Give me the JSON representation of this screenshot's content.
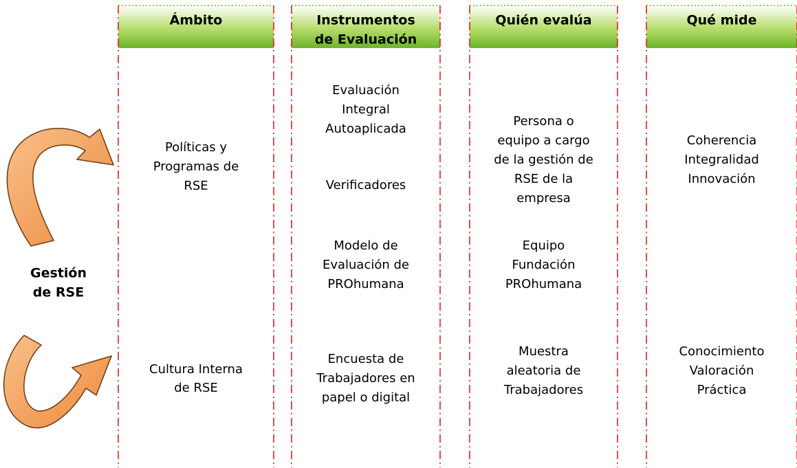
{
  "side_label": [
    "Gestión",
    "de RSE"
  ],
  "columns": [
    {
      "header": [
        "Ámbito"
      ],
      "cells": [
        [
          "Políticas y",
          "Programas de",
          "RSE"
        ],
        [
          "Cultura Interna",
          "de RSE"
        ]
      ]
    },
    {
      "header": [
        "Instrumentos",
        "de Evaluación"
      ],
      "cells": [
        [
          "Evaluación",
          "Integral",
          "Autoaplicada"
        ],
        [
          "Verificadores"
        ],
        [
          "Modelo  de",
          "Evaluación de",
          "PROhumana"
        ],
        [
          "Encuesta de",
          "Trabajadores en",
          "papel o digital"
        ]
      ]
    },
    {
      "header": [
        "Quién evalúa"
      ],
      "cells": [
        [
          "Persona o",
          "equipo a cargo",
          "de la gestión de",
          "RSE de la",
          "empresa"
        ],
        [
          "Equipo",
          "Fundación",
          "PROhumana"
        ],
        [
          "Muestra",
          "aleatoria de",
          "Trabajadores"
        ]
      ]
    },
    {
      "header": [
        "Qué mide"
      ],
      "cells": [
        [
          "Coherencia",
          "Integralidad",
          "Innovación"
        ],
        [
          "Conocimiento",
          "Valoración",
          "Práctica"
        ]
      ]
    }
  ]
}
